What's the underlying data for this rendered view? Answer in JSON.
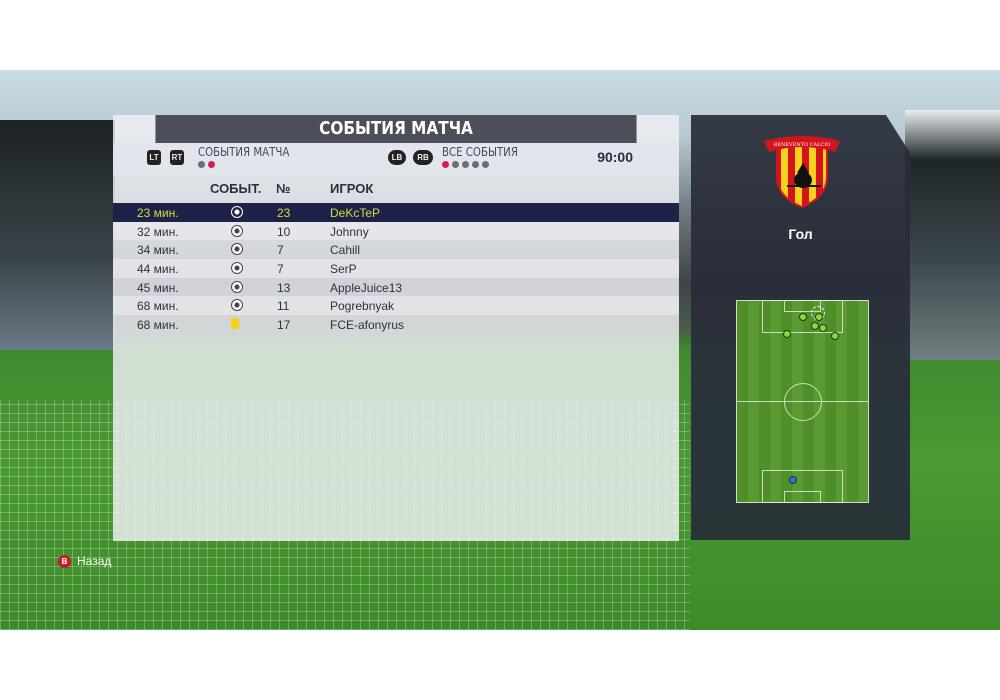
{
  "title": "СОБЫТИЯ МАТЧА",
  "filter_left": {
    "buttons": [
      "LT",
      "RT"
    ],
    "label": "СОБЫТИЯ МАТЧА",
    "dots": 2,
    "active_dot": 1
  },
  "filter_right": {
    "buttons": [
      "LB",
      "RB"
    ],
    "label": "ВСЕ СОБЫТИЯ",
    "dots": 5,
    "active_dot": 0
  },
  "clock": "90:00",
  "columns": {
    "event": "СОБЫТ.",
    "number": "№",
    "player": "ИГРОК"
  },
  "rows": [
    {
      "time": "23 мин.",
      "icon": "soccer-ball-icon",
      "number": "23",
      "player": "DeKcTeP",
      "selected": true
    },
    {
      "time": "32 мин.",
      "icon": "soccer-ball-icon",
      "number": "10",
      "player": "Johnny"
    },
    {
      "time": "34 мин.",
      "icon": "soccer-ball-icon",
      "number": "7",
      "player": "Cahill"
    },
    {
      "time": "44 мин.",
      "icon": "soccer-ball-icon",
      "number": "7",
      "player": "SerP"
    },
    {
      "time": "45 мин.",
      "icon": "soccer-ball-icon",
      "number": "13",
      "player": "AppleJuice13"
    },
    {
      "time": "68 мин.",
      "icon": "soccer-ball-icon",
      "number": "11",
      "player": "Pogrebnyak"
    },
    {
      "time": "68 мин.",
      "icon": "yellow-card-icon",
      "number": "17",
      "player": "FCE-afonyrus"
    }
  ],
  "side": {
    "crest_text": "BENEVENTO CALCIO",
    "event_label": "Гол"
  },
  "back": {
    "button": "B",
    "label": "Назад"
  },
  "colors": {
    "accent": "#d51c5c",
    "selected_row": "#1e2148",
    "selected_text": "#c8e23a"
  }
}
